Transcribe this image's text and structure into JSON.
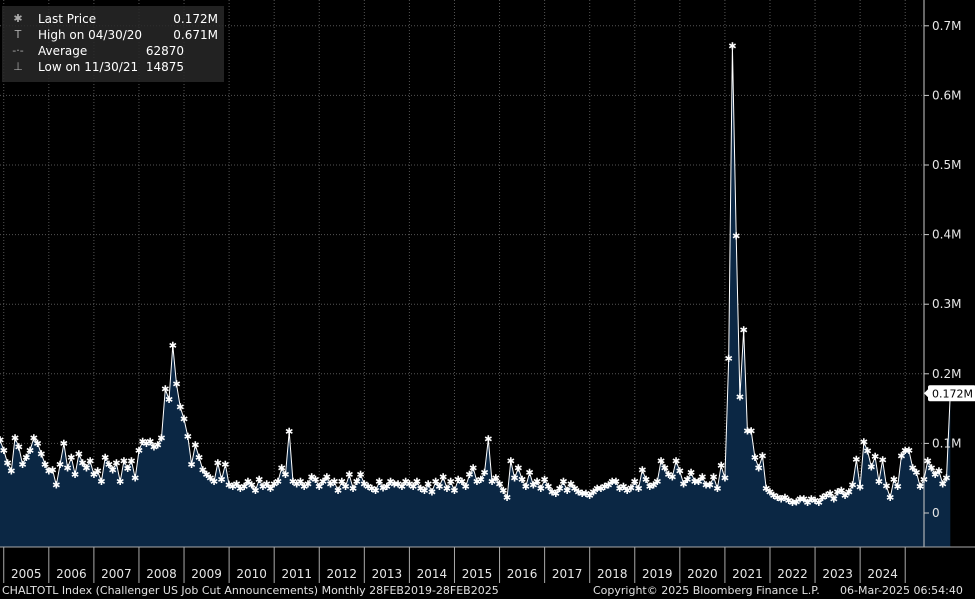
{
  "legend": {
    "last_label": "Last Price",
    "last_value": "0.172M",
    "high_label": "High on 04/30/20",
    "high_value": "0.671M",
    "avg_label": "Average",
    "avg_value": "62870",
    "low_label": "Low on 11/30/21",
    "low_value": "14875",
    "last_symbol": "✱",
    "high_symbol": "T",
    "avg_symbol": "-·-",
    "low_symbol": "⊥"
  },
  "footer": {
    "index": "CHALTOTL Index (Challenger US Job Cut Announcements)  Monthly 28FEB2019-28FEB2025",
    "copyright": "Copyright© 2025 Bloomberg Finance L.P.",
    "timestamp": "06-Mar-2025 06:54:40"
  },
  "colors": {
    "background": "#000000",
    "area": "#0b2744",
    "line": "#ffffff",
    "grid": "#555555"
  },
  "chart_data": {
    "type": "area",
    "title": "CHALTOTL Index (Challenger US Job Cut Announcements)",
    "ylabel": "",
    "xlabel": "",
    "x_start": 2004.917,
    "x_step": 0.08333,
    "ylim": [
      -0.05,
      0.72
    ],
    "y_ticks": [
      0,
      0.1,
      0.2,
      0.3,
      0.4,
      0.5,
      0.6,
      0.7
    ],
    "y_tick_labels": [
      "0",
      "0.1M",
      "0.2M",
      "0.3M",
      "0.4M",
      "0.5M",
      "0.6M",
      "0.7M"
    ],
    "x_tick_labels": [
      "2005",
      "2006",
      "2007",
      "2008",
      "2009",
      "2010",
      "2011",
      "2012",
      "2013",
      "2014",
      "2015",
      "2016",
      "2017",
      "2018",
      "2019",
      "2020",
      "2021",
      "2022",
      "2023",
      "2024"
    ],
    "last_value_label": "0.172M",
    "units": "millions",
    "values": [
      0.105,
      0.09,
      0.072,
      0.06,
      0.108,
      0.095,
      0.07,
      0.08,
      0.09,
      0.108,
      0.1,
      0.085,
      0.07,
      0.06,
      0.062,
      0.04,
      0.07,
      0.1,
      0.065,
      0.08,
      0.055,
      0.085,
      0.072,
      0.065,
      0.075,
      0.055,
      0.06,
      0.045,
      0.08,
      0.07,
      0.062,
      0.072,
      0.045,
      0.075,
      0.064,
      0.075,
      0.05,
      0.09,
      0.103,
      0.1,
      0.103,
      0.095,
      0.098,
      0.108,
      0.178,
      0.163,
      0.241,
      0.185,
      0.152,
      0.135,
      0.11,
      0.07,
      0.098,
      0.08,
      0.062,
      0.055,
      0.05,
      0.045,
      0.072,
      0.048,
      0.07,
      0.04,
      0.038,
      0.042,
      0.035,
      0.038,
      0.045,
      0.04,
      0.032,
      0.048,
      0.038,
      0.042,
      0.035,
      0.042,
      0.045,
      0.065,
      0.055,
      0.117,
      0.045,
      0.042,
      0.045,
      0.038,
      0.042,
      0.052,
      0.048,
      0.038,
      0.045,
      0.052,
      0.042,
      0.045,
      0.032,
      0.045,
      0.038,
      0.055,
      0.035,
      0.045,
      0.055,
      0.042,
      0.038,
      0.035,
      0.032,
      0.045,
      0.036,
      0.038,
      0.045,
      0.042,
      0.042,
      0.038,
      0.045,
      0.042,
      0.038,
      0.045,
      0.035,
      0.032,
      0.042,
      0.03,
      0.045,
      0.038,
      0.052,
      0.035,
      0.045,
      0.032,
      0.048,
      0.045,
      0.038,
      0.055,
      0.065,
      0.045,
      0.048,
      0.058,
      0.106,
      0.045,
      0.05,
      0.042,
      0.032,
      0.022,
      0.075,
      0.05,
      0.065,
      0.048,
      0.038,
      0.058,
      0.04,
      0.045,
      0.035,
      0.048,
      0.038,
      0.03,
      0.028,
      0.035,
      0.045,
      0.032,
      0.042,
      0.035,
      0.03,
      0.028,
      0.028,
      0.025,
      0.03,
      0.035,
      0.035,
      0.038,
      0.04,
      0.045,
      0.045,
      0.035,
      0.038,
      0.032,
      0.036,
      0.045,
      0.035,
      0.062,
      0.048,
      0.038,
      0.04,
      0.045,
      0.075,
      0.065,
      0.055,
      0.052,
      0.075,
      0.06,
      0.042,
      0.048,
      0.058,
      0.045,
      0.045,
      0.052,
      0.04,
      0.04,
      0.052,
      0.035,
      0.068,
      0.05,
      0.222,
      0.671,
      0.398,
      0.167,
      0.263,
      0.118,
      0.118,
      0.08,
      0.065,
      0.082,
      0.035,
      0.03,
      0.025,
      0.022,
      0.02,
      0.022,
      0.018,
      0.015,
      0.016,
      0.02,
      0.02,
      0.015,
      0.02,
      0.018,
      0.015,
      0.022,
      0.025,
      0.028,
      0.02,
      0.03,
      0.032,
      0.025,
      0.03,
      0.04,
      0.077,
      0.037,
      0.102,
      0.089,
      0.066,
      0.081,
      0.045,
      0.076,
      0.039,
      0.022,
      0.048,
      0.038,
      0.082,
      0.09,
      0.09,
      0.065,
      0.058,
      0.038,
      0.048,
      0.075,
      0.065,
      0.055,
      0.06,
      0.042,
      0.05,
      0.172
    ]
  }
}
